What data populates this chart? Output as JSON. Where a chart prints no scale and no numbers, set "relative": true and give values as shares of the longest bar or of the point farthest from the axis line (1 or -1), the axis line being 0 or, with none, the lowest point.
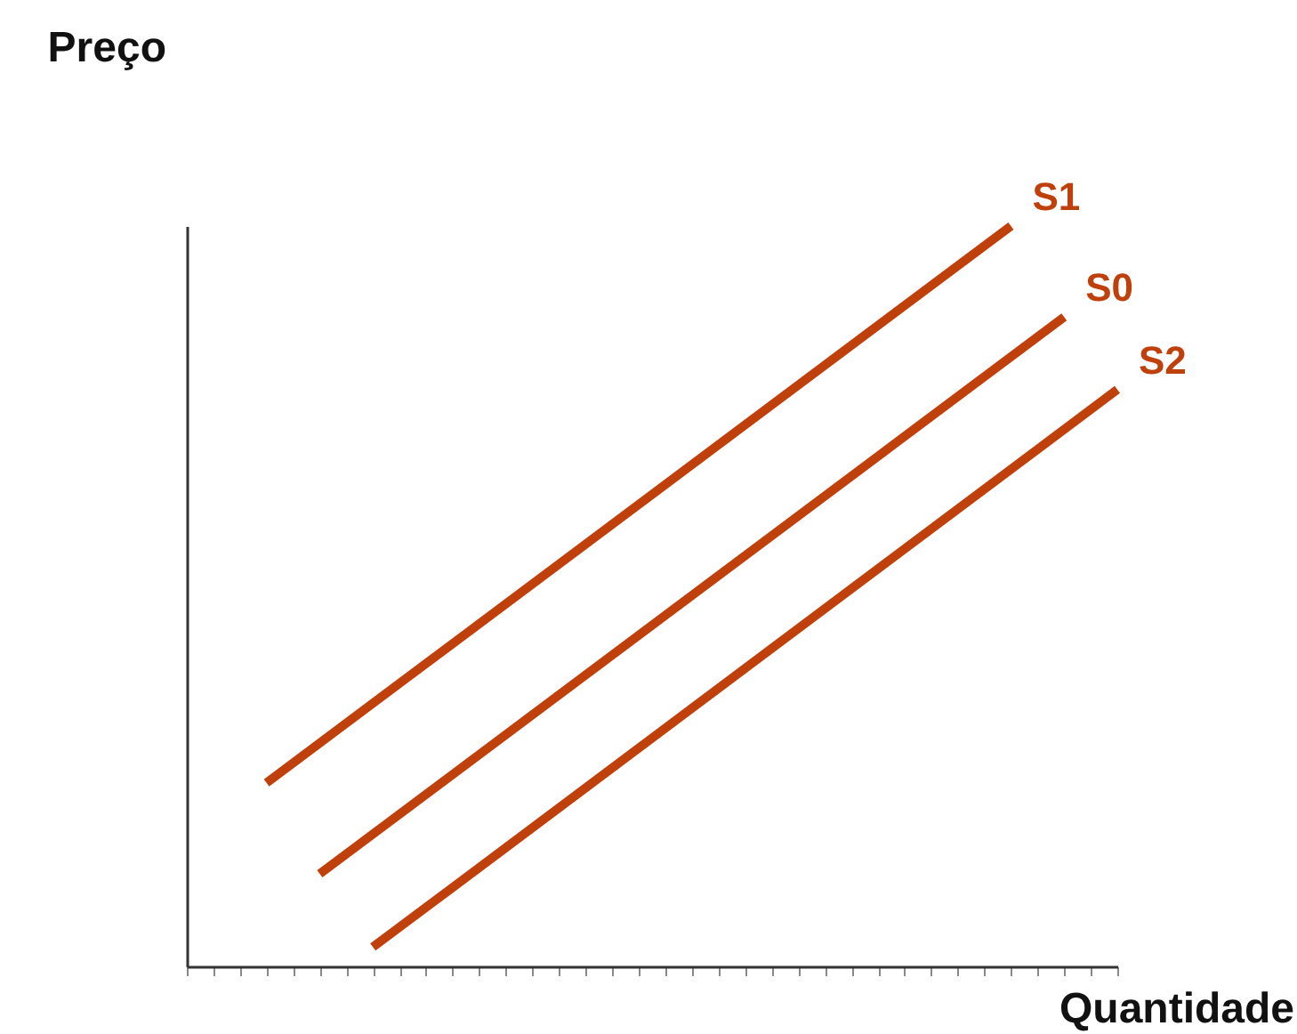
{
  "chart_data": {
    "type": "line",
    "relative": true,
    "xlabel": "Quantidade",
    "ylabel": "Preço",
    "grid": false,
    "marker": "none",
    "line_style": "solid",
    "categories": [
      null,
      null,
      null,
      null,
      null,
      null,
      null,
      null,
      null,
      null,
      null,
      null,
      null,
      null,
      null,
      null,
      null,
      null,
      null,
      null,
      null,
      null,
      null,
      null,
      null,
      null,
      null,
      null,
      null,
      null,
      null,
      null,
      null,
      null,
      null,
      null
    ],
    "series": [
      {
        "name": "S1",
        "color": "#c0400c",
        "values": [
          null,
          null,
          null,
          0.248,
          null,
          null,
          null,
          null,
          null,
          null,
          null,
          null,
          null,
          null,
          null,
          null,
          null,
          null,
          null,
          null,
          null,
          null,
          null,
          null,
          null,
          null,
          null,
          null,
          null,
          null,
          null,
          1,
          null,
          null,
          null,
          null
        ]
      },
      {
        "name": "S0",
        "color": "#c0400c",
        "values": [
          null,
          null,
          null,
          null,
          null,
          0.125,
          null,
          null,
          null,
          null,
          null,
          null,
          null,
          null,
          null,
          null,
          null,
          null,
          null,
          null,
          null,
          null,
          null,
          null,
          null,
          null,
          null,
          null,
          null,
          null,
          null,
          null,
          null,
          0.877,
          null,
          null
        ]
      },
      {
        "name": "S2",
        "color": "#c0400c",
        "values": [
          null,
          null,
          null,
          null,
          null,
          null,
          null,
          0.026,
          null,
          null,
          null,
          null,
          null,
          null,
          null,
          null,
          null,
          null,
          null,
          null,
          null,
          null,
          null,
          null,
          null,
          null,
          null,
          null,
          null,
          null,
          null,
          null,
          null,
          null,
          null,
          0.779
        ]
      }
    ]
  }
}
